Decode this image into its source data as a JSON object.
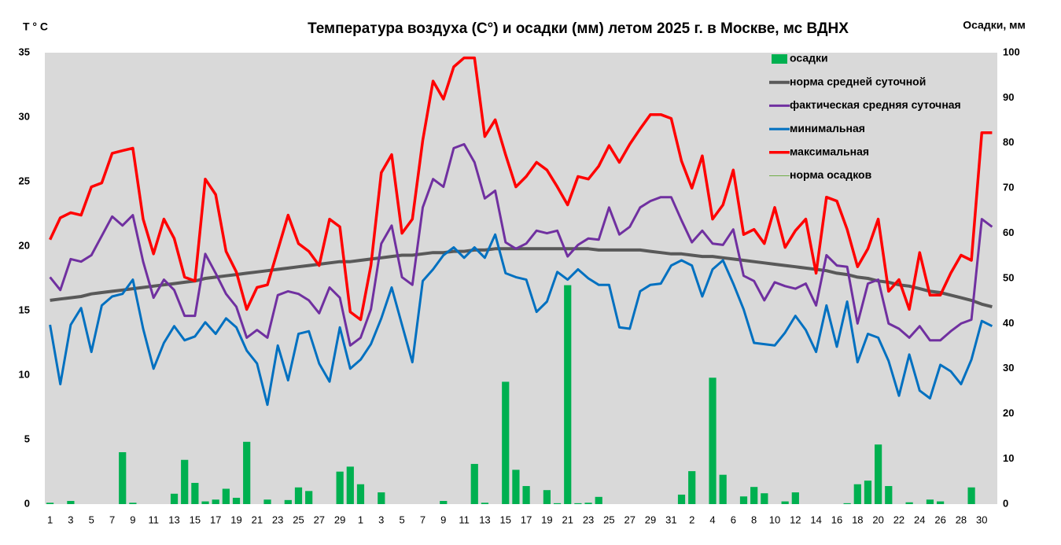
{
  "chart_data": {
    "type": "combo",
    "title": "Температура воздуха (С°) и осадки (мм) летом 2025 г. в Москве, мс ВДНХ",
    "y_label": "T ° C",
    "y2_label": "Осадки, мм",
    "categories": [
      "1",
      null,
      "3",
      null,
      "5",
      null,
      "7",
      null,
      "9",
      null,
      "11",
      null,
      "13",
      null,
      "15",
      null,
      "17",
      null,
      "19",
      null,
      "21",
      null,
      "23",
      null,
      "25",
      null,
      "27",
      null,
      "29",
      null,
      "1",
      null,
      "3",
      null,
      "5",
      null,
      "7",
      null,
      "9",
      null,
      "11",
      null,
      "13",
      null,
      "15",
      null,
      "17",
      null,
      "19",
      null,
      "21",
      null,
      "23",
      null,
      "25",
      null,
      "27",
      null,
      "29",
      null,
      "31",
      null,
      "2",
      null,
      "4",
      null,
      "6",
      null,
      "8",
      null,
      "10",
      null,
      "12",
      null,
      "14",
      null,
      "16",
      null,
      "18",
      null,
      "20",
      null,
      "22",
      null,
      "24",
      null,
      "26",
      null,
      "28",
      null,
      "30",
      null
    ],
    "ylim": [
      0,
      35
    ],
    "yticks": [
      0,
      5,
      10,
      15,
      20,
      25,
      30,
      35
    ],
    "y2lim": [
      0,
      100
    ],
    "y2ticks": [
      0,
      10,
      20,
      30,
      40,
      50,
      60,
      70,
      80,
      90,
      100
    ],
    "background": "#d9d9d9",
    "legend": "top-right",
    "series": [
      {
        "name": "осадки",
        "kind": "bar",
        "axis": "y2",
        "color": "#00b050",
        "values": [
          0.3,
          0,
          0.7,
          0,
          0,
          0,
          0,
          11.5,
          0.3,
          0,
          0,
          0,
          2.3,
          9.8,
          4.7,
          0.6,
          1.0,
          3.4,
          1.4,
          13.8,
          0,
          1.0,
          0,
          0.9,
          3.7,
          2.9,
          0,
          0,
          7.2,
          8.3,
          4.4,
          0,
          2.6,
          0,
          0,
          0,
          0,
          0,
          0.7,
          0,
          0,
          8.9,
          0.3,
          0,
          27.1,
          7.6,
          4.0,
          0,
          3.1,
          0.2,
          48.5,
          0.2,
          0.3,
          1.6,
          0,
          0,
          0,
          0,
          0,
          0,
          0,
          2.1,
          7.3,
          0,
          28.0,
          6.5,
          0,
          1.7,
          3.8,
          2.4,
          0,
          0.6,
          2.6,
          0,
          0,
          0,
          0,
          0.2,
          4.4,
          5.2,
          13.2,
          4.0,
          0,
          0.4,
          0,
          1.0,
          0.6,
          0,
          0,
          3.7,
          0,
          0
        ]
      },
      {
        "name": "норма средней суточной",
        "kind": "line",
        "color": "#595959",
        "width": 4,
        "values": [
          15.8,
          15.9,
          16.0,
          16.1,
          16.3,
          16.4,
          16.5,
          16.6,
          16.7,
          16.8,
          16.9,
          17.0,
          17.1,
          17.2,
          17.3,
          17.5,
          17.6,
          17.7,
          17.8,
          17.9,
          18.0,
          18.1,
          18.2,
          18.3,
          18.4,
          18.5,
          18.6,
          18.7,
          18.8,
          18.8,
          18.9,
          19.0,
          19.1,
          19.2,
          19.3,
          19.3,
          19.4,
          19.5,
          19.5,
          19.6,
          19.6,
          19.7,
          19.7,
          19.8,
          19.8,
          19.8,
          19.8,
          19.8,
          19.8,
          19.8,
          19.8,
          19.8,
          19.8,
          19.7,
          19.7,
          19.7,
          19.7,
          19.7,
          19.6,
          19.5,
          19.4,
          19.4,
          19.3,
          19.2,
          19.2,
          19.1,
          19.0,
          18.9,
          18.8,
          18.7,
          18.6,
          18.5,
          18.4,
          18.3,
          18.2,
          18.1,
          17.9,
          17.8,
          17.6,
          17.5,
          17.3,
          17.2,
          17.0,
          16.9,
          16.7,
          16.5,
          16.4,
          16.2,
          16.0,
          15.8,
          15.5,
          15.3
        ]
      },
      {
        "name": "фактическая средняя суточная",
        "kind": "line",
        "color": "#7030a0",
        "width": 3,
        "values": [
          17.6,
          16.6,
          19.0,
          18.8,
          19.3,
          20.8,
          22.3,
          21.6,
          22.4,
          18.8,
          16.0,
          17.4,
          16.6,
          14.6,
          14.6,
          19.4,
          17.9,
          16.3,
          15.3,
          12.9,
          13.5,
          12.9,
          16.2,
          16.5,
          16.3,
          15.8,
          14.8,
          16.8,
          16.0,
          12.3,
          12.9,
          15.1,
          20.2,
          21.6,
          17.6,
          17.0,
          23.0,
          25.2,
          24.6,
          27.6,
          27.9,
          26.5,
          23.7,
          24.3,
          20.3,
          19.8,
          20.2,
          21.2,
          21.0,
          21.2,
          19.2,
          20.1,
          20.6,
          20.5,
          23.0,
          20.9,
          21.5,
          23.0,
          23.5,
          23.8,
          23.8,
          22.0,
          20.3,
          21.2,
          20.2,
          20.1,
          21.3,
          17.7,
          17.3,
          15.8,
          17.2,
          16.9,
          16.7,
          17.1,
          15.4,
          19.3,
          18.5,
          18.4,
          14.0,
          17.1,
          17.4,
          14.0,
          13.6,
          12.9,
          13.8,
          12.7,
          12.7,
          13.4,
          14.0,
          14.3,
          22.1,
          21.5
        ]
      },
      {
        "name": "минимальная",
        "kind": "line",
        "color": "#0070c0",
        "width": 3,
        "values": [
          13.9,
          9.3,
          13.9,
          15.2,
          11.8,
          15.4,
          16.1,
          16.3,
          17.4,
          13.6,
          10.5,
          12.5,
          13.8,
          12.7,
          13.0,
          14.1,
          13.2,
          14.4,
          13.7,
          11.9,
          10.9,
          7.7,
          12.3,
          9.6,
          13.2,
          13.4,
          10.9,
          9.5,
          13.7,
          10.5,
          11.2,
          12.4,
          14.4,
          16.8,
          13.9,
          11.0,
          17.3,
          18.2,
          19.3,
          19.9,
          19.1,
          19.9,
          19.1,
          20.9,
          17.9,
          17.6,
          17.4,
          14.9,
          15.7,
          18.0,
          17.4,
          18.2,
          17.5,
          17.0,
          17.0,
          13.7,
          13.6,
          16.5,
          17.0,
          17.1,
          18.5,
          18.9,
          18.5,
          16.1,
          18.2,
          18.9,
          17.1,
          15.1,
          12.5,
          12.4,
          12.3,
          13.3,
          14.6,
          13.5,
          11.8,
          15.4,
          12.2,
          15.7,
          11.0,
          13.2,
          12.9,
          11.1,
          8.4,
          11.6,
          8.8,
          8.2,
          10.8,
          10.3,
          9.3,
          11.2,
          14.2,
          13.8
        ]
      },
      {
        "name": "максимальная",
        "kind": "line",
        "color": "#ff0000",
        "width": 3.5,
        "values": [
          20.5,
          22.2,
          22.6,
          22.4,
          24.6,
          24.9,
          27.2,
          27.4,
          27.6,
          22.1,
          19.4,
          22.1,
          20.6,
          17.6,
          17.3,
          25.2,
          24.0,
          19.6,
          18.0,
          15.1,
          16.8,
          17.0,
          19.7,
          22.4,
          20.2,
          19.6,
          18.5,
          22.1,
          21.5,
          14.9,
          14.3,
          18.5,
          25.7,
          27.1,
          21.0,
          22.1,
          28.2,
          32.8,
          31.4,
          33.9,
          34.6,
          34.6,
          28.5,
          29.8,
          27.1,
          24.6,
          25.4,
          26.5,
          25.9,
          24.6,
          23.2,
          25.4,
          25.2,
          26.2,
          27.8,
          26.5,
          27.9,
          29.1,
          30.2,
          30.2,
          29.9,
          26.6,
          24.5,
          27.0,
          22.1,
          23.2,
          25.9,
          20.9,
          21.3,
          20.2,
          23.0,
          19.9,
          21.2,
          22.1,
          17.9,
          23.8,
          23.5,
          21.3,
          18.4,
          19.8,
          22.1,
          16.5,
          17.4,
          15.1,
          19.5,
          16.2,
          16.2,
          17.9,
          19.3,
          18.9,
          28.8,
          28.8
        ]
      },
      {
        "name": "норма осадков",
        "kind": "line",
        "axis": "y2",
        "color": "#70ad47",
        "width": 1,
        "values": [
          null,
          null,
          null,
          null,
          null,
          null,
          null,
          null,
          null,
          null,
          null,
          null,
          null,
          null,
          null,
          null,
          null,
          null,
          null,
          null,
          null,
          null,
          null,
          null,
          null,
          null,
          null,
          null,
          null,
          null,
          null,
          null,
          null,
          null,
          null,
          null,
          null,
          null,
          null,
          null,
          null,
          null,
          null,
          null,
          null,
          null,
          null,
          null,
          null,
          null,
          null,
          null,
          null,
          null,
          null,
          null,
          null,
          null,
          null,
          null,
          null,
          null,
          null,
          null,
          null,
          null,
          null,
          null,
          null,
          null,
          null,
          null,
          null,
          null,
          null,
          null,
          null,
          null,
          null,
          null,
          null,
          null,
          null,
          null,
          null,
          null,
          null,
          null,
          null,
          null,
          null,
          null
        ]
      }
    ]
  }
}
